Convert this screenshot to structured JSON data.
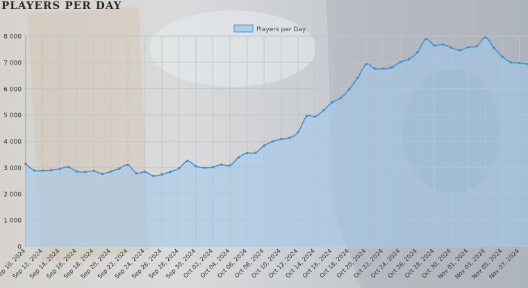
{
  "page": {
    "title": "PLAYERS PER DAY"
  },
  "chart_data": {
    "type": "area",
    "title": "PLAYERS PER DAY",
    "xlabel": "",
    "ylabel": "",
    "ylim": [
      0,
      8000
    ],
    "yticks": [
      0,
      1000,
      2000,
      3000,
      4000,
      5000,
      6000,
      7000,
      8000
    ],
    "ytick_labels": [
      "0",
      "1 000",
      "2 000",
      "3 000",
      "4 000",
      "5 000",
      "6 000",
      "7 000",
      "8 000"
    ],
    "xtick_labels": [
      "Sep 10, 2024",
      "Sep 12, 2024",
      "Sep 14, 2024",
      "Sep 16, 2024",
      "Sep 18, 2024",
      "Sep 20, 2024",
      "Sep 22, 2024",
      "Sep 24, 2024",
      "Sep 26, 2024",
      "Sep 28, 2024",
      "Sep 30, 2024",
      "Oct 02, 2024",
      "Oct 04, 2024",
      "Oct 06, 2024",
      "Oct 08, 2024",
      "Oct 10, 2024",
      "Oct 12, 2024",
      "Oct 14, 2024",
      "Oct 16, 2024",
      "Oct 18, 2024",
      "Oct 20, 2024",
      "Oct 22, 2024",
      "Oct 24, 2024",
      "Oct 26, 2024",
      "Oct 28, 2024",
      "Oct 30, 2024",
      "Nov 01, 2024",
      "Nov 03, 2024",
      "Nov 05, 2024",
      "Nov 07, 2024"
    ],
    "grid": true,
    "legend_position": "top-center",
    "colors": {
      "line": "#3a93d6",
      "fill": "#9fc9ec",
      "grid": "#c2c4c7",
      "tick_text": "#333333"
    },
    "series": [
      {
        "name": "Players per Day",
        "x": [
          "Sep 10, 2024",
          "Sep 11, 2024",
          "Sep 12, 2024",
          "Sep 13, 2024",
          "Sep 14, 2024",
          "Sep 15, 2024",
          "Sep 16, 2024",
          "Sep 17, 2024",
          "Sep 18, 2024",
          "Sep 19, 2024",
          "Sep 20, 2024",
          "Sep 21, 2024",
          "Sep 22, 2024",
          "Sep 23, 2024",
          "Sep 24, 2024",
          "Sep 25, 2024",
          "Sep 26, 2024",
          "Sep 27, 2024",
          "Sep 28, 2024",
          "Sep 29, 2024",
          "Sep 30, 2024",
          "Oct 01, 2024",
          "Oct 02, 2024",
          "Oct 03, 2024",
          "Oct 04, 2024",
          "Oct 05, 2024",
          "Oct 06, 2024",
          "Oct 07, 2024",
          "Oct 08, 2024",
          "Oct 09, 2024",
          "Oct 10, 2024",
          "Oct 11, 2024",
          "Oct 12, 2024",
          "Oct 13, 2024",
          "Oct 14, 2024",
          "Oct 15, 2024",
          "Oct 16, 2024",
          "Oct 17, 2024",
          "Oct 18, 2024",
          "Oct 19, 2024",
          "Oct 20, 2024",
          "Oct 21, 2024",
          "Oct 22, 2024",
          "Oct 23, 2024",
          "Oct 24, 2024",
          "Oct 25, 2024",
          "Oct 26, 2024",
          "Oct 27, 2024",
          "Oct 28, 2024",
          "Oct 29, 2024",
          "Oct 30, 2024",
          "Oct 31, 2024",
          "Nov 01, 2024",
          "Nov 02, 2024",
          "Nov 03, 2024",
          "Nov 04, 2024",
          "Nov 05, 2024",
          "Nov 06, 2024",
          "Nov 07, 2024",
          "Nov 08, 2024"
        ],
        "values": [
          3130,
          2890,
          2880,
          2900,
          2950,
          3020,
          2850,
          2830,
          2870,
          2760,
          2850,
          2960,
          3100,
          2780,
          2840,
          2680,
          2740,
          2840,
          2970,
          3250,
          3050,
          2990,
          3020,
          3110,
          3080,
          3380,
          3550,
          3560,
          3830,
          3990,
          4080,
          4130,
          4350,
          4950,
          4940,
          5180,
          5480,
          5640,
          5980,
          6410,
          6930,
          6760,
          6760,
          6810,
          7010,
          7120,
          7380,
          7880,
          7650,
          7680,
          7560,
          7460,
          7580,
          7620,
          7950,
          7550,
          7210,
          7000,
          6980,
          6930
        ]
      }
    ]
  }
}
